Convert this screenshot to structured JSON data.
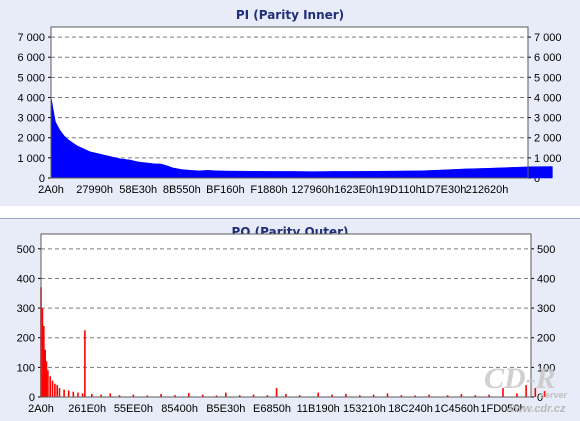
{
  "charts": {
    "pi": {
      "title": "PI (Parity Inner)",
      "color": "#0000ff",
      "y_ticks": [
        "0",
        "1 000",
        "2 000",
        "3 000",
        "4 000",
        "5 000",
        "6 000",
        "7 000"
      ],
      "x_ticks": [
        "2A0h",
        "27990h",
        "58E30h",
        "8B550h",
        "BF160h",
        "F1880h",
        "127960h",
        "1623E0h",
        "19D110h",
        "1D7E30h",
        "212620h"
      ]
    },
    "po": {
      "title": "PO (Parity Outer)",
      "color": "#ff0000",
      "y_ticks": [
        "0",
        "100",
        "200",
        "300",
        "400",
        "500"
      ],
      "x_ticks": [
        "2A0h",
        "261E0h",
        "55EE0h",
        "85400h",
        "B5E30h",
        "E6850h",
        "11B190h",
        "153210h",
        "18C240h",
        "1C4560h",
        "1FD050h"
      ]
    }
  },
  "watermark": {
    "logo": "CD-R",
    "sub": "server",
    "url": "www.cdr.cz"
  },
  "chart_data": [
    {
      "type": "area",
      "title": "PI (Parity Inner)",
      "x_categories": [
        "2A0h",
        "27990h",
        "58E30h",
        "8B550h",
        "BF160h",
        "F1880h",
        "127960h",
        "1623E0h",
        "19D110h",
        "1D7E30h",
        "212620h"
      ],
      "ylim": [
        0,
        7500
      ],
      "grid": true,
      "series": [
        {
          "color": "#0000ff",
          "x": [
            0.0,
            0.02,
            0.05,
            0.1,
            0.15,
            0.2,
            0.25,
            0.3,
            0.35,
            0.4,
            0.5,
            0.6,
            0.7,
            0.8,
            0.9,
            1.0,
            1.2,
            1.4,
            1.6,
            1.8,
            2.0,
            2.2,
            2.4,
            2.5,
            2.6,
            2.8,
            3.0,
            3.2,
            3.4,
            3.6,
            3.8,
            4.0,
            4.5,
            5.0,
            5.5,
            6.0,
            6.5,
            7.0,
            7.5,
            8.0,
            8.5,
            9.0,
            9.5,
            10.0,
            10.5,
            11.0,
            11.5
          ],
          "values": [
            4000,
            3800,
            3400,
            2800,
            2600,
            2400,
            2250,
            2100,
            2000,
            1900,
            1750,
            1600,
            1500,
            1400,
            1300,
            1250,
            1150,
            1050,
            950,
            900,
            800,
            750,
            700,
            700,
            650,
            500,
            420,
            380,
            360,
            380,
            360,
            350,
            340,
            330,
            330,
            320,
            330,
            330,
            340,
            350,
            360,
            400,
            450,
            480,
            520,
            560,
            570
          ]
        }
      ]
    },
    {
      "type": "bar",
      "title": "PO (Parity Outer)",
      "x_categories": [
        "2A0h",
        "261E0h",
        "55EE0h",
        "85400h",
        "B5E30h",
        "E6850h",
        "11B190h",
        "153210h",
        "18C240h",
        "1C4560h",
        "1FD050h"
      ],
      "ylim": [
        0,
        550
      ],
      "grid": true,
      "series": [
        {
          "color": "#ff0000",
          "x": [
            0.0,
            0.03,
            0.06,
            0.09,
            0.12,
            0.15,
            0.2,
            0.25,
            0.3,
            0.35,
            0.4,
            0.5,
            0.6,
            0.7,
            0.8,
            0.9,
            0.95,
            1.1,
            1.3,
            1.5,
            1.7,
            2.0,
            2.3,
            2.6,
            2.9,
            3.2,
            3.5,
            3.8,
            4.0,
            4.3,
            4.6,
            4.9,
            5.1,
            5.3,
            5.6,
            6.0,
            6.3,
            6.6,
            6.9,
            7.2,
            7.5,
            7.8,
            8.1,
            8.4,
            8.8,
            9.1,
            9.4,
            9.7,
            10.0,
            10.3,
            10.5,
            10.7,
            10.9
          ],
          "values": [
            370,
            300,
            240,
            160,
            120,
            90,
            70,
            55,
            45,
            40,
            30,
            25,
            22,
            18,
            15,
            12,
            225,
            10,
            8,
            12,
            6,
            8,
            5,
            10,
            6,
            14,
            8,
            5,
            15,
            6,
            8,
            6,
            30,
            10,
            6,
            15,
            8,
            10,
            6,
            8,
            12,
            6,
            5,
            8,
            6,
            10,
            6,
            8,
            30,
            12,
            40,
            30,
            20
          ]
        }
      ]
    }
  ]
}
